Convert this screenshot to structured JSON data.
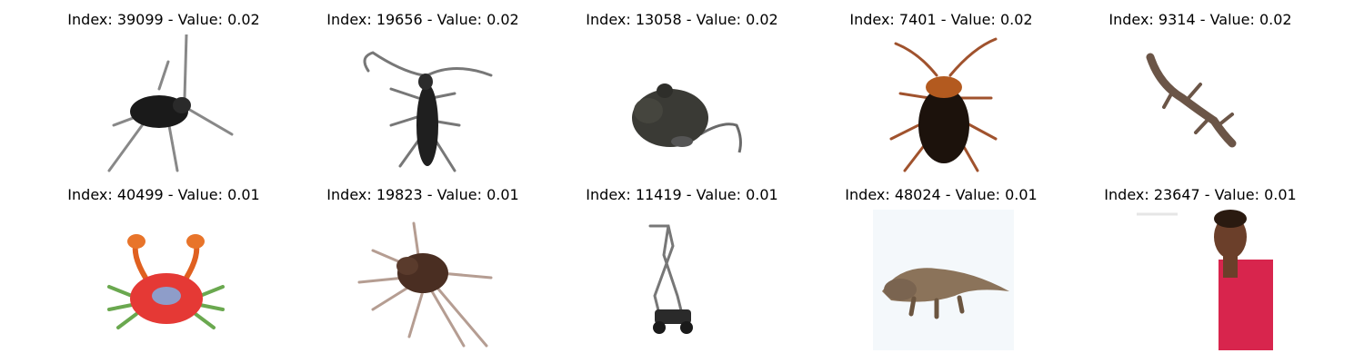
{
  "grid": {
    "items": [
      {
        "title": "Index: 39099 - Value: 0.02",
        "subject": "cricket-insect"
      },
      {
        "title": "Index: 19656 - Value: 0.02",
        "subject": "longhorn-beetle"
      },
      {
        "title": "Index: 13058 - Value: 0.02",
        "subject": "rat"
      },
      {
        "title": "Index: 7401 - Value: 0.02",
        "subject": "cockroach"
      },
      {
        "title": "Index: 9314 - Value: 0.02",
        "subject": "lizard"
      },
      {
        "title": "Index: 40499 - Value: 0.01",
        "subject": "crab"
      },
      {
        "title": "Index: 19823 - Value: 0.01",
        "subject": "spider"
      },
      {
        "title": "Index: 11419 - Value: 0.01",
        "subject": "lawn-mower"
      },
      {
        "title": "Index: 48024 - Value: 0.01",
        "subject": "dinosaur"
      },
      {
        "title": "Index: 23647 - Value: 0.01",
        "subject": "person"
      }
    ]
  }
}
